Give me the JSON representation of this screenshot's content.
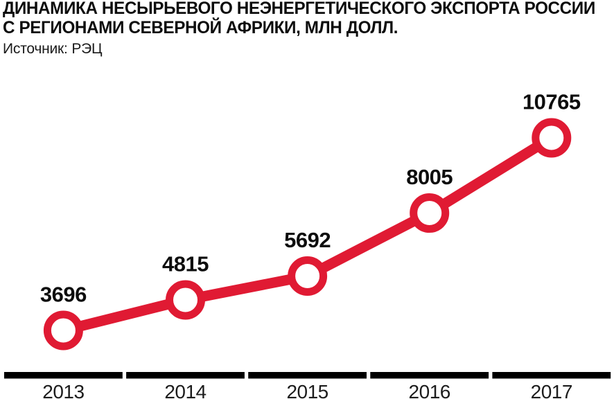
{
  "header": {
    "title_line1": "ДИНАМИКА НЕСЫРЬЕВОГО НЕЭНЕРГЕТИЧЕСКОГО ЭКСПОРТА РОССИИ",
    "title_line2": "С РЕГИОНАМИ СЕВЕРНОЙ АФРИКИ, МЛН ДОЛЛ.",
    "source": "Источник: РЭЦ"
  },
  "colors": {
    "series_red": "#e01a33",
    "axis_black": "#000000",
    "label_black": "#0d0d0d",
    "marker_fill": "#ffffff",
    "background": "#ffffff"
  },
  "chart_data": {
    "type": "line",
    "title": "ДИНАМИКА НЕСЫРЬЕВОГО НЕЭНЕРГЕТИЧЕСКОГО ЭКСПОРТА РОССИИ С РЕГИОНАМИ СЕВЕРНОЙ АФРИКИ, МЛН ДОЛЛ.",
    "source": "Источник: РЭЦ",
    "categories": [
      "2013",
      "2014",
      "2015",
      "2016",
      "2017"
    ],
    "values": [
      3696,
      4815,
      5692,
      8005,
      10765
    ],
    "data_labels": [
      "3696",
      "4815",
      "5692",
      "8005",
      "10765"
    ],
    "xlabel": "",
    "ylabel": "",
    "legend": false,
    "grid": false,
    "marker": "open-circle",
    "series_color": "#e01a33"
  }
}
